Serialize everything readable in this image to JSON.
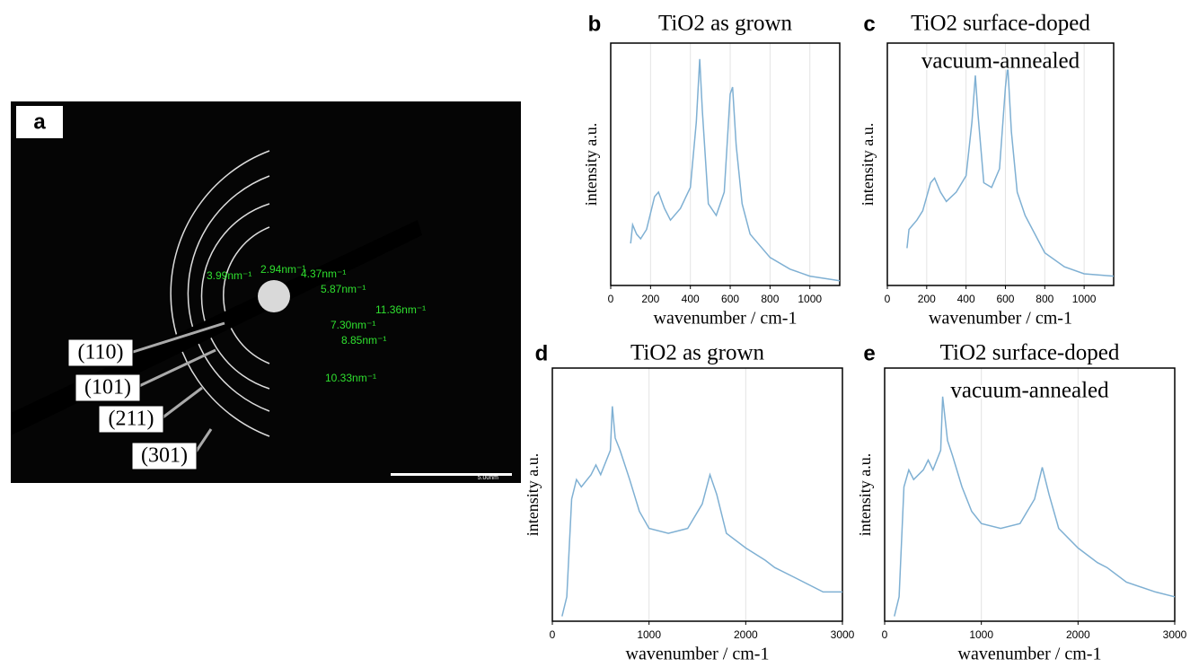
{
  "image_panel": {
    "label": "a",
    "miller_indices": [
      "(110)",
      "(101)",
      "(211)",
      "(301)"
    ],
    "spacings": [
      "3.99nm⁻¹",
      "2.94nm⁻¹",
      "4.37nm⁻¹",
      "5.87nm⁻¹",
      "11.36nm⁻¹",
      "7.30nm⁻¹",
      "8.85nm⁻¹",
      "10.33nm⁻¹"
    ],
    "scale_bar": "5.00nm"
  },
  "chart_data": [
    {
      "type": "line",
      "panel": "b",
      "title": "TiO2 as grown",
      "xlabel": "wavenumber / cm-1",
      "ylabel": "intensity a.u.",
      "x": [
        100,
        110,
        130,
        150,
        180,
        220,
        240,
        270,
        300,
        350,
        400,
        430,
        447,
        460,
        490,
        530,
        570,
        600,
        612,
        630,
        660,
        700,
        800,
        900,
        1000,
        1150
      ],
      "values": [
        0.18,
        0.26,
        0.22,
        0.2,
        0.24,
        0.38,
        0.4,
        0.33,
        0.28,
        0.33,
        0.42,
        0.7,
        0.97,
        0.75,
        0.35,
        0.3,
        0.4,
        0.82,
        0.85,
        0.6,
        0.35,
        0.22,
        0.12,
        0.07,
        0.04,
        0.02
      ],
      "color": "#7fb0d3",
      "xlim": [
        0,
        1150
      ],
      "ylim": [
        0,
        1
      ],
      "xticks": [
        0,
        200,
        400,
        600,
        800,
        1000
      ],
      "grid": true
    },
    {
      "type": "line",
      "panel": "c",
      "title": "TiO2 surface-doped",
      "subtitle": "vacuum-annealed",
      "xlabel": "wavenumber / cm-1",
      "ylabel": "intensity a.u.",
      "x": [
        100,
        110,
        130,
        150,
        180,
        220,
        240,
        270,
        300,
        350,
        400,
        430,
        447,
        460,
        490,
        530,
        570,
        600,
        612,
        630,
        660,
        700,
        800,
        900,
        1000,
        1150
      ],
      "values": [
        0.16,
        0.24,
        0.26,
        0.28,
        0.32,
        0.44,
        0.46,
        0.4,
        0.36,
        0.4,
        0.47,
        0.7,
        0.9,
        0.74,
        0.44,
        0.42,
        0.5,
        0.85,
        0.94,
        0.66,
        0.4,
        0.3,
        0.14,
        0.08,
        0.05,
        0.04
      ],
      "color": "#7fb0d3",
      "xlim": [
        0,
        1150
      ],
      "ylim": [
        0,
        1
      ],
      "xticks": [
        0,
        200,
        400,
        600,
        800,
        1000
      ],
      "grid": true
    },
    {
      "type": "line",
      "panel": "d",
      "title": "TiO2 as grown",
      "xlabel": "wavenumber / cm-1",
      "ylabel": "intensity a.u.",
      "x": [
        100,
        150,
        200,
        250,
        300,
        400,
        450,
        500,
        600,
        620,
        650,
        700,
        800,
        900,
        1000,
        1200,
        1400,
        1550,
        1630,
        1700,
        1800,
        2000,
        2200,
        2300,
        2500,
        2800,
        3000
      ],
      "values": [
        0.02,
        0.1,
        0.5,
        0.58,
        0.55,
        0.6,
        0.64,
        0.6,
        0.7,
        0.88,
        0.75,
        0.7,
        0.58,
        0.45,
        0.38,
        0.36,
        0.38,
        0.48,
        0.6,
        0.52,
        0.36,
        0.3,
        0.25,
        0.22,
        0.18,
        0.12,
        0.12
      ],
      "color": "#7fb0d3",
      "xlim": [
        0,
        3000
      ],
      "ylim": [
        0,
        1
      ],
      "xticks": [
        0,
        1000,
        2000,
        3000
      ],
      "grid": true
    },
    {
      "type": "line",
      "panel": "e",
      "title": "TiO2 surface-doped",
      "subtitle": "vacuum-annealed",
      "xlabel": "wavenumber / cm-1",
      "ylabel": "intensity a.u.",
      "x": [
        100,
        150,
        200,
        250,
        300,
        400,
        450,
        500,
        580,
        600,
        650,
        700,
        800,
        900,
        1000,
        1200,
        1400,
        1550,
        1630,
        1700,
        1800,
        2000,
        2200,
        2300,
        2500,
        2800,
        3000
      ],
      "values": [
        0.02,
        0.1,
        0.55,
        0.62,
        0.58,
        0.62,
        0.66,
        0.62,
        0.7,
        0.92,
        0.74,
        0.68,
        0.55,
        0.45,
        0.4,
        0.38,
        0.4,
        0.5,
        0.63,
        0.52,
        0.38,
        0.3,
        0.24,
        0.22,
        0.16,
        0.12,
        0.1
      ],
      "color": "#7fb0d3",
      "xlim": [
        0,
        3000
      ],
      "ylim": [
        0,
        1
      ],
      "xticks": [
        0,
        1000,
        2000,
        3000
      ],
      "grid": true
    }
  ]
}
